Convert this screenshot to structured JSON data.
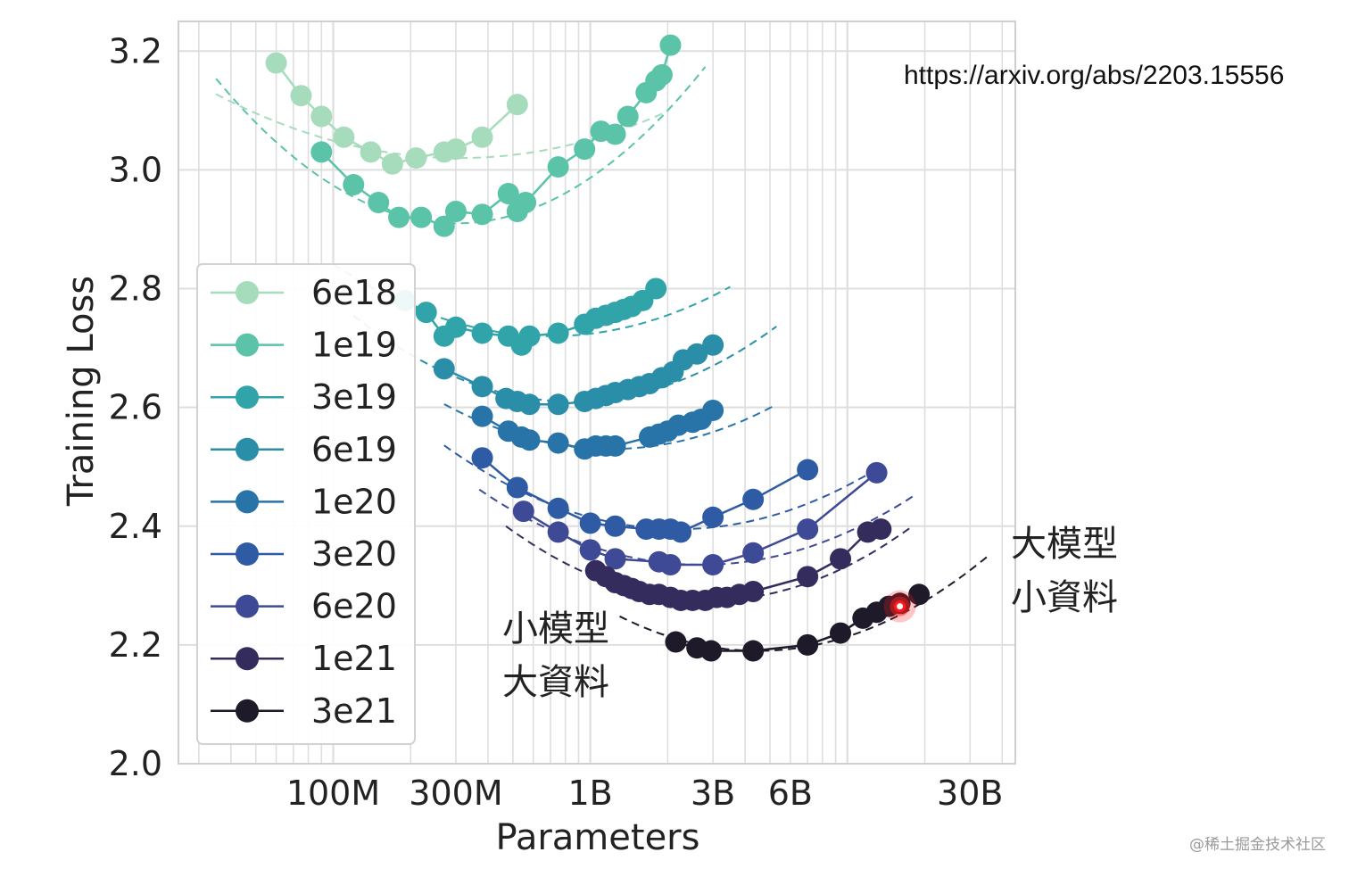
{
  "source_url": "https://arxiv.org/abs/2203.15556",
  "watermark": "@稀土掘金技术社区",
  "annotations": {
    "large_model": [
      "大模型",
      "小資料"
    ],
    "small_model": [
      "小模型",
      "大資料"
    ]
  },
  "highlight_color": "#ff1a1a",
  "chart_data": {
    "type": "scatter",
    "xlabel": "Parameters",
    "ylabel": "Training Loss",
    "x_scale": "log",
    "xlim": [
      25000000,
      45000000000
    ],
    "ylim": [
      2.0,
      3.25
    ],
    "x_ticks": [
      {
        "value": 100000000,
        "label": "100M"
      },
      {
        "value": 300000000,
        "label": "300M"
      },
      {
        "value": 1000000000,
        "label": "1B"
      },
      {
        "value": 3000000000,
        "label": "3B"
      },
      {
        "value": 6000000000,
        "label": "6B"
      },
      {
        "value": 30000000000,
        "label": "30B"
      }
    ],
    "y_ticks": [
      {
        "value": 2.0,
        "label": "2.0"
      },
      {
        "value": 2.2,
        "label": "2.2"
      },
      {
        "value": 2.4,
        "label": "2.4"
      },
      {
        "value": 2.6,
        "label": "2.6"
      },
      {
        "value": 2.8,
        "label": "2.8"
      },
      {
        "value": 3.0,
        "label": "3.0"
      },
      {
        "value": 3.2,
        "label": "3.2"
      }
    ],
    "grid": true,
    "legend_position": "left",
    "highlight_point": {
      "x": 16000000000,
      "y": 2.265
    },
    "series": [
      {
        "name": "6e18",
        "color": "#a6dcbc",
        "fit": {
          "x_range": [
            35000000,
            2000000000
          ],
          "min_x": 310000000,
          "min_y": 3.02,
          "a": 0.12
        },
        "points": [
          [
            60000000,
            3.18
          ],
          [
            75000000,
            3.125
          ],
          [
            90000000,
            3.09
          ],
          [
            110000000,
            3.055
          ],
          [
            140000000,
            3.03
          ],
          [
            170000000,
            3.01
          ],
          [
            210000000,
            3.02
          ],
          [
            270000000,
            3.03
          ],
          [
            300000000,
            3.035
          ],
          [
            380000000,
            3.055
          ],
          [
            520000000,
            3.11
          ]
        ]
      },
      {
        "name": "1e19",
        "color": "#5bc3a8",
        "fit": {
          "x_range": [
            35000000,
            2800000000
          ],
          "min_x": 300000000,
          "min_y": 2.91,
          "a": 0.28
        },
        "points": [
          [
            90000000,
            3.03
          ],
          [
            120000000,
            2.975
          ],
          [
            150000000,
            2.945
          ],
          [
            180000000,
            2.92
          ],
          [
            220000000,
            2.92
          ],
          [
            270000000,
            2.905
          ],
          [
            300000000,
            2.93
          ],
          [
            380000000,
            2.925
          ],
          [
            480000000,
            2.96
          ],
          [
            520000000,
            2.93
          ],
          [
            560000000,
            2.945
          ],
          [
            750000000,
            3.005
          ],
          [
            950000000,
            3.035
          ],
          [
            1100000000,
            3.065
          ],
          [
            1250000000,
            3.06
          ],
          [
            1400000000,
            3.09
          ],
          [
            1650000000,
            3.13
          ],
          [
            1800000000,
            3.15
          ],
          [
            1900000000,
            3.16
          ],
          [
            2050000000,
            3.21
          ]
        ]
      },
      {
        "name": "3e19",
        "color": "#30a4a8",
        "fit": {
          "x_range": [
            100000000,
            3500000000
          ],
          "min_x": 700000000,
          "min_y": 2.72,
          "a": 0.17
        },
        "points": [
          [
            190000000,
            2.78
          ],
          [
            230000000,
            2.76
          ],
          [
            270000000,
            2.72
          ],
          [
            300000000,
            2.735
          ],
          [
            380000000,
            2.725
          ],
          [
            480000000,
            2.72
          ],
          [
            540000000,
            2.705
          ],
          [
            580000000,
            2.72
          ],
          [
            750000000,
            2.725
          ],
          [
            950000000,
            2.74
          ],
          [
            1050000000,
            2.75
          ],
          [
            1150000000,
            2.755
          ],
          [
            1250000000,
            2.76
          ],
          [
            1350000000,
            2.765
          ],
          [
            1450000000,
            2.77
          ],
          [
            1600000000,
            2.78
          ],
          [
            1800000000,
            2.8
          ]
        ]
      },
      {
        "name": "6e19",
        "color": "#2b8ea9",
        "fit": {
          "x_range": [
            120000000,
            5300000000
          ],
          "min_x": 850000000,
          "min_y": 2.61,
          "a": 0.2
        },
        "points": [
          [
            270000000,
            2.665
          ],
          [
            380000000,
            2.635
          ],
          [
            470000000,
            2.615
          ],
          [
            520000000,
            2.61
          ],
          [
            580000000,
            2.605
          ],
          [
            750000000,
            2.605
          ],
          [
            950000000,
            2.61
          ],
          [
            1050000000,
            2.615
          ],
          [
            1150000000,
            2.62
          ],
          [
            1250000000,
            2.625
          ],
          [
            1400000000,
            2.63
          ],
          [
            1550000000,
            2.635
          ],
          [
            1700000000,
            2.64
          ],
          [
            1900000000,
            2.65
          ],
          [
            2100000000,
            2.66
          ],
          [
            2300000000,
            2.68
          ],
          [
            2600000000,
            2.69
          ],
          [
            3000000000,
            2.705
          ]
        ]
      },
      {
        "name": "1e20",
        "color": "#2873a8",
        "fit": {
          "x_range": [
            270000000,
            5300000000
          ],
          "min_x": 1200000000,
          "min_y": 2.53,
          "a": 0.18
        },
        "points": [
          [
            380000000,
            2.585
          ],
          [
            480000000,
            2.56
          ],
          [
            540000000,
            2.55
          ],
          [
            580000000,
            2.545
          ],
          [
            750000000,
            2.54
          ],
          [
            950000000,
            2.53
          ],
          [
            1050000000,
            2.535
          ],
          [
            1150000000,
            2.535
          ],
          [
            1250000000,
            2.535
          ],
          [
            1700000000,
            2.55
          ],
          [
            1850000000,
            2.555
          ],
          [
            2000000000,
            2.56
          ],
          [
            2200000000,
            2.57
          ],
          [
            2500000000,
            2.575
          ],
          [
            2700000000,
            2.58
          ],
          [
            3000000000,
            2.595
          ]
        ]
      },
      {
        "name": "3e20",
        "color": "#2e5ba3",
        "fit": {
          "x_range": [
            270000000,
            12000000000
          ],
          "min_x": 2200000000,
          "min_y": 2.395,
          "a": 0.17
        },
        "points": [
          [
            380000000,
            2.515
          ],
          [
            520000000,
            2.465
          ],
          [
            750000000,
            2.43
          ],
          [
            1000000000,
            2.405
          ],
          [
            1250000000,
            2.4
          ],
          [
            1650000000,
            2.395
          ],
          [
            1850000000,
            2.395
          ],
          [
            2050000000,
            2.395
          ],
          [
            2250000000,
            2.39
          ],
          [
            3000000000,
            2.415
          ],
          [
            4300000000,
            2.445
          ],
          [
            7000000000,
            2.495
          ]
        ]
      },
      {
        "name": "6e20",
        "color": "#3f4a96",
        "fit": {
          "x_range": [
            370000000,
            18000000000
          ],
          "min_x": 2700000000,
          "min_y": 2.335,
          "a": 0.17
        },
        "points": [
          [
            550000000,
            2.425
          ],
          [
            750000000,
            2.39
          ],
          [
            1000000000,
            2.36
          ],
          [
            1250000000,
            2.345
          ],
          [
            1850000000,
            2.34
          ],
          [
            2050000000,
            2.335
          ],
          [
            3000000000,
            2.335
          ],
          [
            4300000000,
            2.355
          ],
          [
            7000000000,
            2.395
          ],
          [
            13000000000,
            2.49
          ]
        ]
      },
      {
        "name": "1e21",
        "color": "#342c5c",
        "fit": {
          "x_range": [
            470000000,
            18000000000
          ],
          "min_x": 2900000000,
          "min_y": 2.275,
          "a": 0.2
        },
        "points": [
          [
            1050000000,
            2.325
          ],
          [
            1150000000,
            2.315
          ],
          [
            1250000000,
            2.305
          ],
          [
            1350000000,
            2.3
          ],
          [
            1450000000,
            2.295
          ],
          [
            1550000000,
            2.29
          ],
          [
            1700000000,
            2.285
          ],
          [
            1850000000,
            2.285
          ],
          [
            2050000000,
            2.28
          ],
          [
            2250000000,
            2.275
          ],
          [
            2500000000,
            2.275
          ],
          [
            2800000000,
            2.275
          ],
          [
            3100000000,
            2.28
          ],
          [
            3400000000,
            2.28
          ],
          [
            3800000000,
            2.285
          ],
          [
            4300000000,
            2.29
          ],
          [
            7000000000,
            2.315
          ],
          [
            9400000000,
            2.345
          ],
          [
            12000000000,
            2.39
          ],
          [
            13500000000,
            2.395
          ]
        ]
      },
      {
        "name": "3e21",
        "color": "#1e1a2a",
        "fit": {
          "x_range": [
            1300000000,
            35000000000
          ],
          "min_x": 4500000000,
          "min_y": 2.19,
          "a": 0.2
        },
        "points": [
          [
            2150000000,
            2.205
          ],
          [
            2600000000,
            2.195
          ],
          [
            2950000000,
            2.19
          ],
          [
            4300000000,
            2.19
          ],
          [
            7000000000,
            2.2
          ],
          [
            9400000000,
            2.22
          ],
          [
            11500000000,
            2.245
          ],
          [
            13000000000,
            2.255
          ],
          [
            14500000000,
            2.265
          ],
          [
            16000000000,
            2.27
          ],
          [
            19000000000,
            2.285
          ]
        ]
      }
    ]
  }
}
